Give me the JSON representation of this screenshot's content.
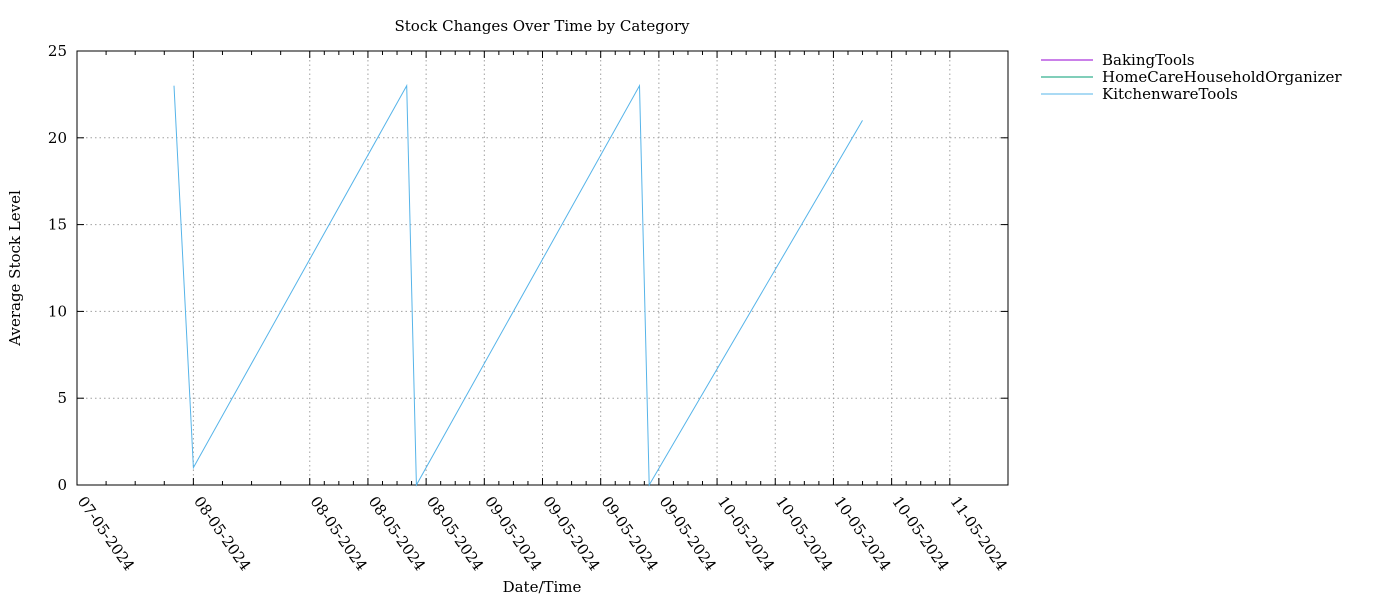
{
  "chart_data": {
    "type": "line",
    "title": "Stock Changes Over Time by Category",
    "xlabel": "Date/Time",
    "ylabel": "Average Stock Level",
    "ylim": [
      0,
      25
    ],
    "yticks": [
      0,
      5,
      10,
      15,
      20,
      25
    ],
    "xlim": [
      "2024-05-07T00:00",
      "2024-05-11T00:00"
    ],
    "xticks": [
      {
        "at": "2024-05-07T00:00",
        "label": "07-05-2024"
      },
      {
        "at": "2024-05-07T12:00",
        "label": "08-05-2024"
      },
      {
        "at": "2024-05-08T00:00",
        "label": "08-05-2024"
      },
      {
        "at": "2024-05-08T06:00",
        "label": "08-05-2024"
      },
      {
        "at": "2024-05-08T12:00",
        "label": "08-05-2024"
      },
      {
        "at": "2024-05-08T18:00",
        "label": "09-05-2024"
      },
      {
        "at": "2024-05-09T00:00",
        "label": "09-05-2024"
      },
      {
        "at": "2024-05-09T06:00",
        "label": "09-05-2024"
      },
      {
        "at": "2024-05-09T12:00",
        "label": "09-05-2024"
      },
      {
        "at": "2024-05-09T18:00",
        "label": "10-05-2024"
      },
      {
        "at": "2024-05-10T00:00",
        "label": "10-05-2024"
      },
      {
        "at": "2024-05-10T06:00",
        "label": "10-05-2024"
      },
      {
        "at": "2024-05-10T12:00",
        "label": "10-05-2024"
      },
      {
        "at": "2024-05-10T18:00",
        "label": "11-05-2024"
      }
    ],
    "grid": true,
    "legend_position": "outside-top-right",
    "series": [
      {
        "name": "BakingTools",
        "color": "#9400d3",
        "points": []
      },
      {
        "name": "HomeCareHouseholdOrganizer",
        "color": "#009e73",
        "points": []
      },
      {
        "name": "KitchenwareTools",
        "color": "#56b4e9",
        "points": [
          {
            "x": "2024-05-07T10:00",
            "y": 23
          },
          {
            "x": "2024-05-07T12:00",
            "y": 1
          },
          {
            "x": "2024-05-08T10:00",
            "y": 23
          },
          {
            "x": "2024-05-08T11:00",
            "y": 0
          },
          {
            "x": "2024-05-09T10:00",
            "y": 23
          },
          {
            "x": "2024-05-09T11:00",
            "y": 0
          },
          {
            "x": "2024-05-10T09:00",
            "y": 21
          }
        ]
      }
    ]
  }
}
